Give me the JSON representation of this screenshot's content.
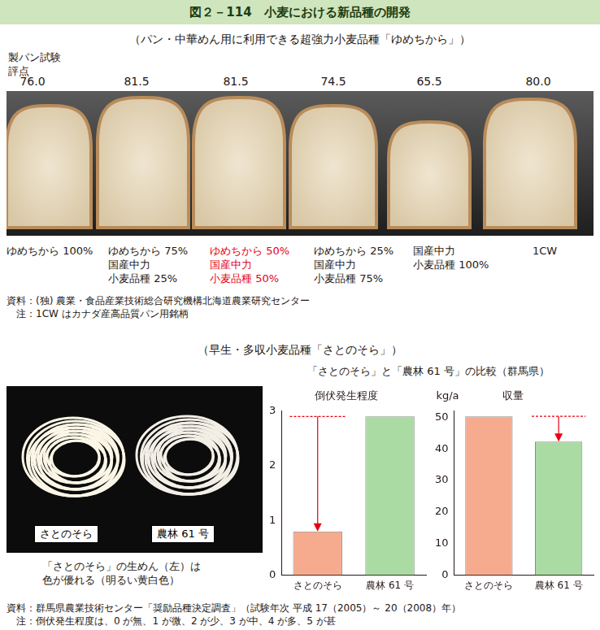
{
  "header": {
    "title": "図２－114　小麦における新品種の開発"
  },
  "bread_test": {
    "subtitle": "（パン・中華めん用に利用できる超強力小麦品種「ゆめちから」）",
    "score_title": [
      "製パン試験",
      "評点"
    ],
    "scores": [
      "76.0",
      "81.5",
      "81.5",
      "74.5",
      "65.5",
      "80.0"
    ],
    "labels": [
      [
        "ゆめちから 100%"
      ],
      [
        "ゆめちから 75%",
        "国産中力",
        "小麦品種 25%"
      ],
      [
        "ゆめちから 50%",
        "国産中力",
        "小麦品種 50%"
      ],
      [
        "ゆめちから 25%",
        "国産中力",
        "小麦品種 75%"
      ],
      [
        "国産中力",
        "小麦品種 100%"
      ],
      [
        "1CW"
      ]
    ],
    "colors": [
      "#231815",
      "#231815",
      "#e60012",
      "#231815",
      "#231815",
      "#231815"
    ],
    "source": [
      "資料：(独) 農業・食品産業技術総合研究機構北海道農業研究センター",
      "　注：1CW はカナダ産高品質パン用銘柄"
    ]
  },
  "satonosora": {
    "subtitle": "（早生・多収小麦品種「さとのそら」）",
    "photo_labels": [
      "さとのそら",
      "農林 61 号"
    ],
    "photo_caption": [
      "「さとのそら」の生めん（左）は",
      "色が優れる（明るい黄白色）"
    ],
    "comparison_title": "「さとのそら」と「農林 61 号」の比較（群馬県）",
    "source": [
      "資料：群馬県農業技術センター「奨励品種決定調査」（試験年次 平成 17（2005）～ 20（2008）年）",
      "　注：倒伏発生程度は、0 が無、1 が微、2 が少、3 が中、4 が多、5 が甚"
    ]
  },
  "chart_data": [
    {
      "type": "bar",
      "title": "倒伏発生程度",
      "categories": [
        "さとのそら",
        "農林 61 号"
      ],
      "values": [
        0.8,
        2.9
      ],
      "colors": [
        "#f6ab8e",
        "#aadba3"
      ],
      "ylim": [
        0,
        3
      ],
      "yticks": [
        0,
        1,
        2,
        3
      ],
      "grid": false
    },
    {
      "type": "bar",
      "title": "収量",
      "ylabel": "kg/a",
      "categories": [
        "さとのそら",
        "農林 61 号"
      ],
      "values": [
        50.3,
        42.3
      ],
      "colors": [
        "#f6ab8e",
        "#aadba3"
      ],
      "ylim": [
        0,
        52
      ],
      "yticks": [
        0,
        10,
        20,
        30,
        40,
        50
      ],
      "grid": false
    }
  ]
}
